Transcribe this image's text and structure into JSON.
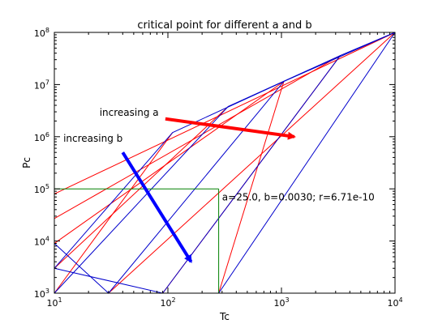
{
  "chart_data": {
    "type": "line",
    "title": "critical point for different a and b",
    "xlabel": "Tc",
    "ylabel": "Pc",
    "xscale": "log",
    "yscale": "log",
    "xlim": [
      10,
      10000
    ],
    "ylim": [
      1000,
      100000000
    ],
    "x_ticks": [
      {
        "value": 10,
        "base": "10",
        "exp": "1"
      },
      {
        "value": 100,
        "base": "10",
        "exp": "2"
      },
      {
        "value": 1000,
        "base": "10",
        "exp": "3"
      },
      {
        "value": 10000,
        "base": "10",
        "exp": "4"
      }
    ],
    "y_ticks": [
      {
        "value": 1000,
        "base": "10",
        "exp": "3"
      },
      {
        "value": 10000,
        "base": "10",
        "exp": "4"
      },
      {
        "value": 100000,
        "base": "10",
        "exp": "5"
      },
      {
        "value": 1000000,
        "base": "10",
        "exp": "6"
      },
      {
        "value": 10000000,
        "base": "10",
        "exp": "7"
      },
      {
        "value": 100000000,
        "base": "10",
        "exp": "8"
      }
    ],
    "grid": false,
    "colors": {
      "a_lines": "#ff0000",
      "b_lines": "#0000cc",
      "highlight": "#008000",
      "arrow_a": "#ff0000",
      "arrow_b": "#0000ff"
    },
    "series_a_const": [
      {
        "points": [
          [
            10,
            1000
          ],
          [
            110,
            1200000
          ]
        ]
      },
      {
        "points": [
          [
            10,
            3000
          ],
          [
            340,
            3800000
          ]
        ]
      },
      {
        "points": [
          [
            10,
            9000
          ],
          [
            1050,
            11500000
          ]
        ]
      },
      {
        "points": [
          [
            10,
            27000
          ],
          [
            3300,
            36000000
          ]
        ]
      },
      {
        "points": [
          [
            10,
            80000
          ],
          [
            10000,
            100000000
          ]
        ]
      },
      {
        "points": [
          [
            30,
            1000
          ],
          [
            10000,
            100000000
          ]
        ]
      },
      {
        "points": [
          [
            90,
            1000
          ],
          [
            3300,
            36000000
          ]
        ]
      },
      {
        "points": [
          [
            280,
            1000
          ],
          [
            1050,
            11500000
          ]
        ]
      }
    ],
    "series_b_const": [
      {
        "points": [
          [
            10,
            1000
          ],
          [
            280,
            1000
          ],
          [
            10000,
            100000000
          ]
        ]
      },
      {
        "points": [
          [
            10,
            3000
          ],
          [
            90,
            1000
          ],
          [
            3300,
            36000000
          ],
          [
            10000,
            100000000
          ]
        ]
      },
      {
        "points": [
          [
            10,
            9000
          ],
          [
            30,
            1000
          ],
          [
            1050,
            11500000
          ],
          [
            10000,
            100000000
          ]
        ]
      },
      {
        "points": [
          [
            10,
            1000
          ],
          [
            340,
            3800000
          ],
          [
            3300,
            36000000
          ]
        ]
      },
      {
        "points": [
          [
            10,
            3000
          ],
          [
            110,
            1200000
          ],
          [
            1050,
            11500000
          ]
        ]
      }
    ],
    "highlight_point": {
      "x": 280,
      "y": 100000
    },
    "annotations": [
      {
        "text": "increasing a",
        "x": 25,
        "y": 2500000
      },
      {
        "text": "increasing b",
        "x": 12,
        "y": 800000
      },
      {
        "text": "a=25.0, b=0.0030; r=6.71e-10",
        "x": 300,
        "y": 60000
      }
    ],
    "arrows": [
      {
        "label": "increasing a",
        "from": [
          95,
          2200000
        ],
        "to": [
          1300,
          1000000
        ]
      },
      {
        "label": "increasing b",
        "from": [
          40,
          500000
        ],
        "to": [
          160,
          4000
        ]
      }
    ]
  }
}
